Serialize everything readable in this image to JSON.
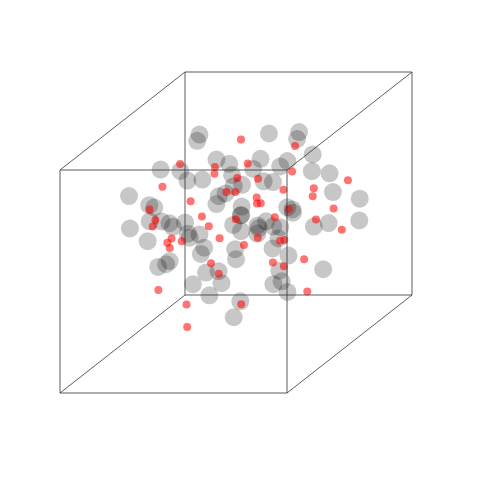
{
  "chart_data": {
    "type": "scatter3d",
    "tick_labels": false,
    "xlim": [
      0,
      1
    ],
    "ylim": [
      0,
      1
    ],
    "zlim": [
      0,
      1
    ],
    "series": [
      {
        "color": "#000000",
        "x": [
          0.12,
          0.25,
          0.38,
          0.51,
          0.64,
          0.77,
          0.88,
          0.18,
          0.31,
          0.44,
          0.57,
          0.7,
          0.83,
          0.22,
          0.35,
          0.48,
          0.61,
          0.74,
          0.15,
          0.28,
          0.41,
          0.54,
          0.67,
          0.8,
          0.93,
          0.09,
          0.33,
          0.46,
          0.59,
          0.72,
          0.2,
          0.42,
          0.63,
          0.85,
          0.27,
          0.5,
          0.71,
          0.14,
          0.37,
          0.58,
          0.79,
          0.24,
          0.47,
          0.68,
          0.9,
          0.11,
          0.34,
          0.55,
          0.76,
          0.3,
          0.52,
          0.73,
          0.17,
          0.4,
          0.62,
          0.84,
          0.26,
          0.49,
          0.66,
          0.87,
          0.19,
          0.43,
          0.6,
          0.81,
          0.36,
          0.53,
          0.75,
          0.13,
          0.45,
          0.65,
          0.29,
          0.56,
          0.78,
          0.21,
          0.39,
          0.69,
          0.32,
          0.6,
          0.48,
          0.55
        ],
        "y": [
          0.55,
          0.7,
          0.62,
          0.78,
          0.48,
          0.66,
          0.52,
          0.35,
          0.82,
          0.44,
          0.6,
          0.74,
          0.4,
          0.68,
          0.5,
          0.88,
          0.3,
          0.58,
          0.76,
          0.25,
          0.64,
          0.46,
          0.84,
          0.36,
          0.56,
          0.42,
          0.72,
          0.28,
          0.9,
          0.5,
          0.18,
          0.6,
          0.7,
          0.62,
          0.54,
          0.38,
          0.8,
          0.64,
          0.22,
          0.66,
          0.74,
          0.86,
          0.52,
          0.32,
          0.44,
          0.58,
          0.92,
          0.68,
          0.26,
          0.46,
          0.76,
          0.58,
          0.34,
          0.48,
          0.82,
          0.3,
          0.62,
          0.12,
          0.56,
          0.7,
          0.8,
          0.4,
          0.64,
          0.5,
          0.72,
          0.2,
          0.84,
          0.48,
          0.6,
          0.42,
          0.36,
          0.74,
          0.66,
          0.54,
          0.3,
          0.88,
          0.58,
          0.52,
          0.68,
          0.46
        ],
        "z": [
          0.5,
          0.3,
          0.7,
          0.45,
          0.6,
          0.25,
          0.8,
          0.55,
          0.4,
          0.65,
          0.35,
          0.75,
          0.2,
          0.62,
          0.48,
          0.38,
          0.72,
          0.52,
          0.28,
          0.66,
          0.58,
          0.42,
          0.68,
          0.32,
          0.46,
          0.74,
          0.54,
          0.36,
          0.6,
          0.44,
          0.7,
          0.26,
          0.56,
          0.64,
          0.78,
          0.5,
          0.34,
          0.46,
          0.62,
          0.4,
          0.58,
          0.68,
          0.3,
          0.52,
          0.76,
          0.36,
          0.48,
          0.82,
          0.44,
          0.24,
          0.66,
          0.38,
          0.54,
          0.72,
          0.42,
          0.58,
          0.34,
          0.5,
          0.62,
          0.28,
          0.46,
          0.8,
          0.36,
          0.56,
          0.7,
          0.48,
          0.4,
          0.64,
          0.22,
          0.52,
          0.6,
          0.44,
          0.74,
          0.32,
          0.56,
          0.66,
          0.42,
          0.5,
          0.38,
          0.58
        ]
      },
      {
        "color": "#ff0000",
        "x": [
          0.2,
          0.35,
          0.5,
          0.65,
          0.8,
          0.28,
          0.43,
          0.58,
          0.73,
          0.88,
          0.15,
          0.32,
          0.47,
          0.62,
          0.77,
          0.24,
          0.4,
          0.55,
          0.7,
          0.85,
          0.18,
          0.36,
          0.52,
          0.68,
          0.92,
          0.26,
          0.44,
          0.6,
          0.75,
          0.12,
          0.3,
          0.48,
          0.64,
          0.82,
          0.22,
          0.38,
          0.56,
          0.72,
          0.9,
          0.34,
          0.46,
          0.66,
          0.1,
          0.54,
          0.78,
          0.42,
          0.6,
          0.86,
          0.27,
          0.5
        ],
        "y": [
          0.6,
          0.72,
          0.45,
          0.8,
          0.38,
          0.52,
          0.66,
          0.3,
          0.74,
          0.58,
          0.42,
          0.86,
          0.56,
          0.64,
          0.2,
          0.7,
          0.48,
          0.78,
          0.34,
          0.62,
          0.26,
          0.54,
          0.68,
          0.44,
          0.76,
          0.16,
          0.82,
          0.5,
          0.6,
          0.36,
          0.64,
          0.4,
          0.88,
          0.52,
          0.74,
          0.28,
          0.58,
          0.7,
          0.46,
          0.12,
          0.66,
          0.56,
          0.5,
          0.34,
          0.8,
          0.62,
          0.24,
          0.68,
          0.44,
          0.9
        ],
        "z": [
          0.4,
          0.6,
          0.3,
          0.7,
          0.5,
          0.35,
          0.55,
          0.65,
          0.25,
          0.45,
          0.62,
          0.38,
          0.72,
          0.48,
          0.58,
          0.28,
          0.68,
          0.42,
          0.52,
          0.76,
          0.46,
          0.32,
          0.64,
          0.56,
          0.36,
          0.54,
          0.44,
          0.74,
          0.22,
          0.66,
          0.5,
          0.6,
          0.34,
          0.7,
          0.42,
          0.58,
          0.26,
          0.48,
          0.62,
          0.4,
          0.3,
          0.52,
          0.56,
          0.78,
          0.44,
          0.64,
          0.36,
          0.46,
          0.7,
          0.54
        ]
      }
    ]
  }
}
